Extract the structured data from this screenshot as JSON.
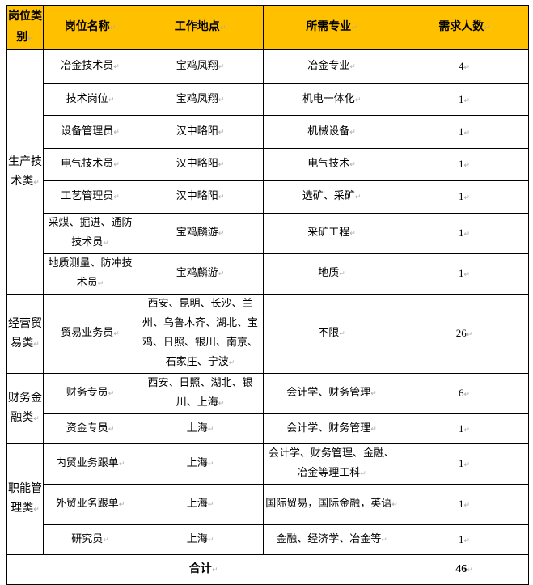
{
  "headers": [
    "岗位类别",
    "岗位名称",
    "工作地点",
    "所需专业",
    "需求人数"
  ],
  "groups": [
    {
      "category": "生产技术类",
      "rows": [
        {
          "name": "冶金技术员",
          "location": "宝鸡凤翔",
          "major": "冶金专业",
          "count": "4"
        },
        {
          "name": "技术岗位",
          "location": "宝鸡凤翔",
          "major": "机电一体化",
          "count": "1"
        },
        {
          "name": "设备管理员",
          "location": "汉中略阳",
          "major": "机械设备",
          "count": "1"
        },
        {
          "name": "电气技术员",
          "location": "汉中略阳",
          "major": "电气技术",
          "count": "1"
        },
        {
          "name": "工艺管理员",
          "location": "汉中略阳",
          "major": "选矿、采矿",
          "count": "1"
        },
        {
          "name": "采煤、掘进、通防技术员",
          "location": "宝鸡麟游",
          "major": "采矿工程",
          "count": "1"
        },
        {
          "name": "地质测量、防冲技术员",
          "location": "宝鸡麟游",
          "major": "地质",
          "count": "1"
        }
      ]
    },
    {
      "category": "经营贸易类",
      "rows": [
        {
          "name": "贸易业务员",
          "location": "西安、昆明、长沙、兰州、乌鲁木齐、湖北、宝鸡、日照、银川、南京、石家庄、宁波",
          "major": "不限",
          "count": "26"
        }
      ]
    },
    {
      "category": "财务金融类",
      "rows": [
        {
          "name": "财务专员",
          "location": "西安、日照、湖北、银川、上海",
          "major": "会计学、财务管理",
          "count": "6"
        },
        {
          "name": "资金专员",
          "location": "上海",
          "major": "会计学、财务管理",
          "count": "1"
        }
      ]
    },
    {
      "category": "职能管理类",
      "rows": [
        {
          "name": "内贸业务跟单",
          "location": "上海",
          "major": "会计学、财务管理、金融、冶金等理工科",
          "count": "1"
        },
        {
          "name": "外贸业务跟单",
          "location": "上海",
          "major": "国际贸易，国际金融，英语",
          "count": "1"
        },
        {
          "name": "研究员",
          "location": "上海",
          "major": "金融、经济学、冶金等",
          "count": "1"
        }
      ]
    }
  ],
  "total": {
    "label": "合计",
    "count": "46"
  },
  "colors": {
    "header_bg": "#ffc000",
    "border": "#000000"
  }
}
